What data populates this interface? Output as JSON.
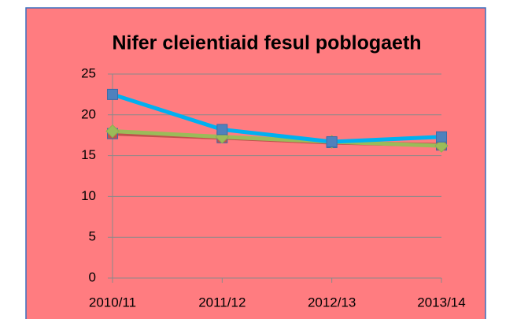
{
  "chart_data": {
    "type": "line",
    "title": "Nifer cleientiaid fesul poblogaeth",
    "categories": [
      "2010/11",
      "2011/12",
      "2012/13",
      "2013/14"
    ],
    "series": [
      {
        "color": "#c0504d",
        "marker_color": "#c0504d",
        "marker": "square",
        "values": [
          17.7,
          17.2,
          16.6,
          16.3
        ]
      },
      {
        "color": "#9bbb59",
        "marker_color": "#9bbb59",
        "marker": "diamond",
        "values": [
          18.0,
          17.3,
          16.7,
          16.2
        ]
      },
      {
        "color": "#00b0f0",
        "marker_color": "#4f81bd",
        "marker": "square",
        "values": [
          22.5,
          18.2,
          16.7,
          17.3
        ]
      }
    ],
    "ylim": [
      0,
      25
    ],
    "yticks": [
      0,
      5,
      10,
      15,
      20,
      25
    ],
    "grid": true,
    "background": "#ff7c80"
  }
}
